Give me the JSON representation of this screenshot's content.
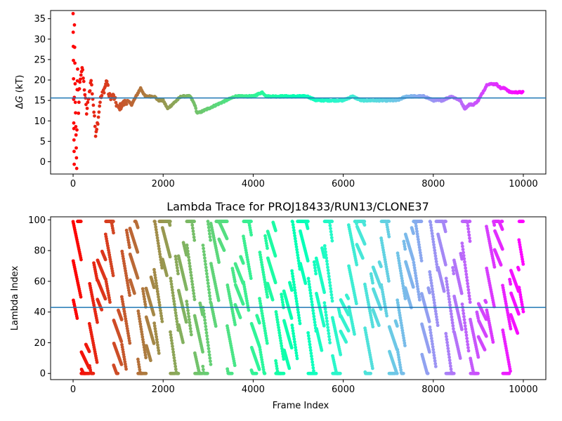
{
  "chart_data": [
    {
      "type": "scatter",
      "title": "",
      "ylabel_prefix": "Δ",
      "ylabel_var": "G",
      "ylabel_suffix": " (kT)",
      "xlabel": "",
      "xlim": [
        -500,
        10500
      ],
      "ylim": [
        -3,
        37
      ],
      "xticks": [
        0,
        2000,
        4000,
        6000,
        8000,
        10000
      ],
      "yticks": [
        0,
        5,
        10,
        15,
        20,
        25,
        30,
        35
      ],
      "hline": 15.6,
      "hline_color": "#1f77b4",
      "colormap": "rainbow",
      "series_points": [
        [
          0,
          36
        ],
        [
          5,
          28
        ],
        [
          10,
          20
        ],
        [
          15,
          10
        ],
        [
          20,
          5
        ],
        [
          25,
          -1
        ],
        [
          30,
          33
        ],
        [
          40,
          24
        ],
        [
          50,
          15
        ],
        [
          60,
          8
        ],
        [
          70,
          4
        ],
        [
          80,
          -2
        ],
        [
          90,
          18
        ],
        [
          100,
          22
        ],
        [
          120,
          12
        ],
        [
          150,
          20
        ],
        [
          200,
          23
        ],
        [
          250,
          18
        ],
        [
          300,
          12
        ],
        [
          350,
          16
        ],
        [
          400,
          20
        ],
        [
          450,
          14
        ],
        [
          500,
          7
        ],
        [
          550,
          10
        ],
        [
          600,
          15
        ],
        [
          700,
          18
        ],
        [
          750,
          20
        ],
        [
          800,
          16
        ],
        [
          900,
          16
        ],
        [
          1000,
          13
        ],
        [
          1100,
          14
        ],
        [
          1200,
          15
        ],
        [
          1300,
          14
        ],
        [
          1400,
          16
        ],
        [
          1500,
          18
        ],
        [
          1600,
          16
        ],
        [
          1700,
          16
        ],
        [
          1800,
          16
        ],
        [
          1900,
          15
        ],
        [
          2000,
          15
        ],
        [
          2100,
          13
        ],
        [
          2200,
          14
        ],
        [
          2300,
          15
        ],
        [
          2400,
          16
        ],
        [
          2500,
          16
        ],
        [
          2600,
          16
        ],
        [
          2700,
          14
        ],
        [
          2750,
          12
        ],
        [
          2800,
          12
        ],
        [
          3000,
          13
        ],
        [
          3200,
          14
        ],
        [
          3400,
          15
        ],
        [
          3600,
          16
        ],
        [
          3800,
          16
        ],
        [
          4000,
          16
        ],
        [
          4200,
          17
        ],
        [
          4300,
          16
        ],
        [
          4500,
          16
        ],
        [
          4700,
          16
        ],
        [
          5000,
          16
        ],
        [
          5200,
          16
        ],
        [
          5400,
          15
        ],
        [
          5600,
          15
        ],
        [
          5800,
          15
        ],
        [
          6000,
          15
        ],
        [
          6200,
          16
        ],
        [
          6400,
          15
        ],
        [
          6600,
          15
        ],
        [
          6800,
          15
        ],
        [
          7000,
          15
        ],
        [
          7200,
          15
        ],
        [
          7400,
          16
        ],
        [
          7600,
          16
        ],
        [
          7800,
          16
        ],
        [
          8000,
          15
        ],
        [
          8200,
          15
        ],
        [
          8400,
          16
        ],
        [
          8600,
          15
        ],
        [
          8650,
          14
        ],
        [
          8700,
          13
        ],
        [
          8800,
          14
        ],
        [
          8900,
          14
        ],
        [
          9000,
          15
        ],
        [
          9100,
          17
        ],
        [
          9200,
          19
        ],
        [
          9300,
          19
        ],
        [
          9400,
          19
        ],
        [
          9500,
          18
        ],
        [
          9600,
          18
        ],
        [
          9700,
          17
        ],
        [
          9800,
          17
        ],
        [
          10000,
          17
        ]
      ]
    },
    {
      "type": "scatter",
      "title": "Lambda Trace for PROJ18433/RUN13/CLONE37",
      "xlabel": "Frame Index",
      "ylabel": "Lambda Index",
      "xlim": [
        -500,
        10500
      ],
      "ylim": [
        -4,
        102
      ],
      "xticks": [
        0,
        2000,
        4000,
        6000,
        8000,
        10000
      ],
      "yticks": [
        0,
        20,
        40,
        60,
        80,
        100
      ],
      "hline": 43,
      "hline_color": "#1f77b4",
      "colormap": "rainbow",
      "frame_range": [
        0,
        10000
      ],
      "lambda_range": [
        0,
        99
      ]
    }
  ]
}
